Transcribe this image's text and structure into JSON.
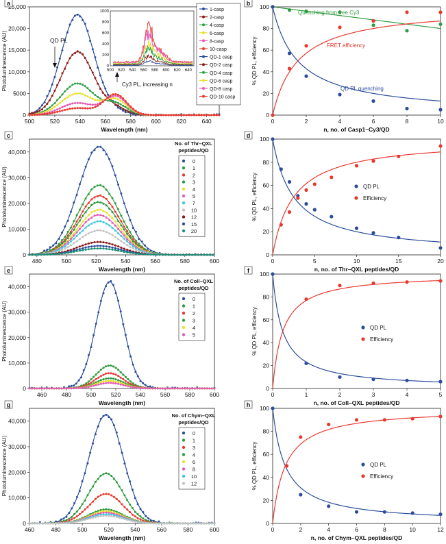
{
  "figure": {
    "panels": [
      "a",
      "b",
      "c",
      "d",
      "e",
      "f",
      "g",
      "h"
    ]
  },
  "chart_data": [
    {
      "panel": "a",
      "type": "line",
      "xlabel": "Wavelength (nm)",
      "ylabel": "Photoluminescence (AU)",
      "xlim": [
        500,
        650
      ],
      "ylim": [
        0,
        25000
      ],
      "xticks": [
        500,
        520,
        540,
        560,
        580,
        600,
        620,
        640
      ],
      "yticks": [
        0,
        5000,
        10000,
        15000,
        20000,
        25000
      ],
      "annotations": [
        "QD PL",
        "Cy3 PL, increasing n"
      ],
      "legend": {
        "position": "right",
        "entries": [
          "1-casp",
          "2-casp",
          "4-casp",
          "6-casp",
          "8-casp",
          "10-casp",
          "QD-1 casp",
          "QD-2 casp",
          "QD-4 casp",
          "QD-6 casp",
          "QD-8 casp",
          "QD-10 casp"
        ]
      },
      "series": [
        {
          "name": "QD-1 casp",
          "color": "#2a4d9b",
          "qd_peak": 23200,
          "cy3_peak": 150
        },
        {
          "name": "QD-2 casp",
          "color": "#8b1a1a",
          "qd_peak": 14600,
          "cy3_peak": 300
        },
        {
          "name": "QD-4 casp",
          "color": "#2ea043",
          "qd_peak": 7300,
          "cy3_peak": 500
        },
        {
          "name": "QD-6 casp",
          "color": "#e8e030",
          "qd_peak": 5000,
          "cy3_peak": 700
        },
        {
          "name": "QD-8 casp",
          "color": "#e35ab5",
          "qd_peak": 2800,
          "cy3_peak": 850
        },
        {
          "name": "QD-10 casp",
          "color": "#e8382e",
          "qd_peak": 1600,
          "cy3_peak": 950
        }
      ],
      "inset": {
        "xlim": [
          500,
          650
        ],
        "ylim": [
          0,
          1000
        ],
        "xticks": [
          500,
          520,
          540,
          560,
          580,
          600,
          620,
          640
        ],
        "yticks": [
          0,
          200,
          400,
          600,
          800,
          1000
        ],
        "series": [
          {
            "name": "10-casp",
            "color": "#e8382e",
            "peak": 900
          },
          {
            "name": "8-casp",
            "color": "#e35ab5",
            "peak": 750
          },
          {
            "name": "6-casp",
            "color": "#e8e030",
            "peak": 520
          },
          {
            "name": "4-casp",
            "color": "#2ea043",
            "peak": 400
          },
          {
            "name": "2-casp",
            "color": "#8b1a1a",
            "peak": 230
          },
          {
            "name": "1-casp",
            "color": "#2a4d9b",
            "peak": 110
          }
        ]
      }
    },
    {
      "panel": "b",
      "type": "scatter",
      "xlabel": "n, no. of Casp1–Cy3/QD",
      "ylabel": "% QD PL, efficiency",
      "xlim": [
        0,
        10
      ],
      "ylim": [
        0,
        100
      ],
      "xticks": [
        0,
        2,
        4,
        6,
        8,
        10
      ],
      "yticks": [
        0,
        20,
        40,
        60,
        80,
        100
      ],
      "annotations": [
        "Quenching from free Cy3",
        "FRET efficiency",
        "QD PL quenching"
      ],
      "series": [
        {
          "name": "Quenching from free Cy3",
          "color": "#2e9b3e",
          "points": [
            [
              0,
              100
            ],
            [
              1,
              97
            ],
            [
              2,
              96
            ],
            [
              4,
              95
            ],
            [
              6,
              83
            ],
            [
              8,
              78
            ],
            [
              10,
              84
            ]
          ],
          "fit": {
            "kind": "linear",
            "a": 100,
            "b": -2.0
          }
        },
        {
          "name": "FRET efficiency",
          "color": "#e8382e",
          "points": [
            [
              0,
              0
            ],
            [
              1,
              43
            ],
            [
              2,
              64
            ],
            [
              4,
              81
            ],
            [
              6,
              87
            ],
            [
              8,
              95
            ],
            [
              10,
              95
            ]
          ],
          "fit": {
            "kind": "fret",
            "n0": 1.5,
            "max": 100
          }
        },
        {
          "name": "QD PL quenching",
          "color": "#2a4d9b",
          "points": [
            [
              0,
              100
            ],
            [
              1,
              57
            ],
            [
              2,
              36
            ],
            [
              4,
              19
            ],
            [
              6,
              13
            ],
            [
              8,
              6
            ],
            [
              10,
              5
            ]
          ],
          "fit": {
            "kind": "quench",
            "n0": 1.5,
            "max": 100
          }
        }
      ]
    },
    {
      "panel": "c",
      "type": "line",
      "xlabel": "Wavelength (nm)",
      "ylabel": "Photoluminescence (AU)",
      "xlim": [
        475,
        600
      ],
      "ylim": [
        0,
        45000
      ],
      "xticks": [
        480,
        500,
        520,
        540,
        560,
        580,
        600
      ],
      "yticks": [
        0,
        10000,
        20000,
        30000,
        40000
      ],
      "legend": {
        "position": "right",
        "title": "No. of Thr–QXL peptides/QD",
        "entries": [
          "0",
          "1",
          "2",
          "3",
          "4",
          "5",
          "7",
          "10",
          "12",
          "15",
          "20"
        ]
      },
      "series": [
        {
          "name": "0",
          "color": "#2a4d9b",
          "peak": 42000
        },
        {
          "name": "1",
          "color": "#2e9b3e",
          "peak": 27000
        },
        {
          "name": "2",
          "color": "#e8382e",
          "peak": 23000
        },
        {
          "name": "3",
          "color": "#2e9b3e",
          "peak": 20500
        },
        {
          "name": "4",
          "color": "#e8e030",
          "peak": 17500
        },
        {
          "name": "5",
          "color": "#e35ab5",
          "peak": 15500
        },
        {
          "name": "7",
          "color": "#3cc7e0",
          "peak": 13000
        },
        {
          "name": "10",
          "color": "#c4c4c4",
          "peak": 9500
        },
        {
          "name": "12",
          "color": "#8b1a1a",
          "peak": 5000
        },
        {
          "name": "15",
          "color": "#2a4d9b",
          "peak": 3500
        },
        {
          "name": "20",
          "color": "#1e8f7a",
          "peak": 2500
        }
      ]
    },
    {
      "panel": "d",
      "type": "scatter",
      "xlabel": "n, no. of Thr–QXL peptides/QD",
      "ylabel": "% QD PL, efficiency",
      "xlim": [
        0,
        20
      ],
      "ylim": [
        0,
        100
      ],
      "xticks": [
        0,
        5,
        10,
        15,
        20
      ],
      "yticks": [
        0,
        20,
        40,
        60,
        80,
        100
      ],
      "legend": {
        "position": "center-right",
        "entries": [
          "QD PL",
          "Efficiency"
        ]
      },
      "series": [
        {
          "name": "QD PL",
          "color": "#2a4d9b",
          "points": [
            [
              0,
              100
            ],
            [
              1,
              74
            ],
            [
              2,
              63
            ],
            [
              3,
              51
            ],
            [
              4,
              44
            ],
            [
              5,
              39
            ],
            [
              7,
              33
            ],
            [
              10,
              23
            ],
            [
              12,
              19
            ],
            [
              15,
              15
            ],
            [
              20,
              6
            ]
          ],
          "fit": {
            "kind": "quench",
            "n0": 2.5,
            "max": 100
          }
        },
        {
          "name": "Efficiency",
          "color": "#e8382e",
          "points": [
            [
              1,
              26
            ],
            [
              2,
              37
            ],
            [
              3,
              49
            ],
            [
              4,
              56
            ],
            [
              5,
              61
            ],
            [
              7,
              67
            ],
            [
              10,
              77
            ],
            [
              12,
              81
            ],
            [
              15,
              85
            ],
            [
              20,
              94
            ]
          ],
          "fit": {
            "kind": "fret",
            "n0": 2.5,
            "max": 100
          }
        }
      ]
    },
    {
      "panel": "e",
      "type": "line",
      "xlabel": "Wavelength (nm)",
      "ylabel": "Photoluminescence (AU)",
      "xlim": [
        450,
        600
      ],
      "ylim": [
        0,
        45000
      ],
      "xticks": [
        460,
        480,
        500,
        520,
        540,
        560,
        580,
        600
      ],
      "yticks": [
        0,
        10000,
        20000,
        30000,
        40000
      ],
      "legend": {
        "position": "right",
        "title": "No. of Coll–QXL peptides/QD",
        "entries": [
          "0",
          "1",
          "2",
          "3",
          "4",
          "5"
        ]
      },
      "series": [
        {
          "name": "0",
          "color": "#2a4d9b",
          "peak": 42000
        },
        {
          "name": "1",
          "color": "#2e9b3e",
          "peak": 9000
        },
        {
          "name": "2",
          "color": "#e8382e",
          "peak": 6000
        },
        {
          "name": "3",
          "color": "#2e9b3e",
          "peak": 4000
        },
        {
          "name": "4",
          "color": "#e8e030",
          "peak": 3000
        },
        {
          "name": "5",
          "color": "#e35ab5",
          "peak": 2200
        }
      ]
    },
    {
      "panel": "f",
      "type": "scatter",
      "xlabel": "n, no. of Coll–QXL peptides/QD",
      "ylabel": "% QD PL, efficiency",
      "xlim": [
        0,
        5
      ],
      "ylim": [
        0,
        100
      ],
      "xticks": [
        0,
        1,
        2,
        3,
        4,
        5
      ],
      "yticks": [
        0,
        20,
        40,
        60,
        80,
        100
      ],
      "legend": {
        "position": "center-right",
        "entries": [
          "QD PL",
          "Efficiency"
        ]
      },
      "series": [
        {
          "name": "QD PL",
          "color": "#2a4d9b",
          "points": [
            [
              0,
              100
            ],
            [
              1,
              22
            ],
            [
              2,
              10
            ],
            [
              3,
              8
            ],
            [
              4,
              7
            ],
            [
              5,
              6
            ]
          ],
          "fit": {
            "kind": "quench",
            "n0": 0.3,
            "max": 100
          }
        },
        {
          "name": "Efficiency",
          "color": "#e8382e",
          "points": [
            [
              1,
              78
            ],
            [
              2,
              90
            ],
            [
              3,
              92
            ],
            [
              4,
              93
            ],
            [
              5,
              94
            ]
          ],
          "fit": {
            "kind": "fret",
            "n0": 0.3,
            "max": 100
          }
        }
      ]
    },
    {
      "panel": "g",
      "type": "line",
      "xlabel": "Wavelength (nm)",
      "ylabel": "Photoluminescence (AU)",
      "xlim": [
        460,
        600
      ],
      "ylim": [
        0,
        45000
      ],
      "xticks": [
        460,
        480,
        500,
        520,
        540,
        560,
        580,
        600
      ],
      "yticks": [
        0,
        10000,
        20000,
        30000,
        40000
      ],
      "legend": {
        "position": "right",
        "title": "No. of Chym–QXL peptides/QD",
        "entries": [
          "0",
          "1",
          "3",
          "4",
          "6",
          "8",
          "10",
          "12"
        ]
      },
      "series": [
        {
          "name": "0",
          "color": "#2a4d9b",
          "peak": 42500
        },
        {
          "name": "1",
          "color": "#2e9b3e",
          "peak": 19500
        },
        {
          "name": "3",
          "color": "#e8382e",
          "peak": 11500
        },
        {
          "name": "4",
          "color": "#2e9b3e",
          "peak": 5500
        },
        {
          "name": "6",
          "color": "#e8e030",
          "peak": 4800
        },
        {
          "name": "8",
          "color": "#e35ab5",
          "peak": 4200
        },
        {
          "name": "10",
          "color": "#3cc7e0",
          "peak": 3600
        },
        {
          "name": "12",
          "color": "#c4c4c4",
          "peak": 3000
        }
      ]
    },
    {
      "panel": "h",
      "type": "scatter",
      "xlabel": "n, no. of Chym–QXL peptides/QD",
      "ylabel": "% QD PL, efficiency",
      "xlim": [
        0,
        12
      ],
      "ylim": [
        0,
        100
      ],
      "xticks": [
        0,
        2,
        4,
        6,
        8,
        10,
        12
      ],
      "yticks": [
        0,
        20,
        40,
        60,
        80,
        100
      ],
      "legend": {
        "position": "center-right",
        "entries": [
          "QD PL",
          "Efficiency"
        ]
      },
      "series": [
        {
          "name": "QD PL",
          "color": "#2a4d9b",
          "points": [
            [
              0,
              100
            ],
            [
              1,
              50
            ],
            [
              2,
              25
            ],
            [
              4,
              15
            ],
            [
              6,
              10
            ],
            [
              8,
              10
            ],
            [
              10,
              9
            ],
            [
              12,
              8
            ]
          ],
          "fit": {
            "kind": "quench",
            "n0": 0.9,
            "max": 100
          }
        },
        {
          "name": "Efficiency",
          "color": "#e8382e",
          "points": [
            [
              1,
              50
            ],
            [
              2,
              75
            ],
            [
              4,
              86
            ],
            [
              6,
              90
            ],
            [
              8,
              90
            ],
            [
              10,
              91
            ],
            [
              12,
              93
            ]
          ],
          "fit": {
            "kind": "fret",
            "n0": 0.9,
            "max": 100
          }
        }
      ]
    }
  ]
}
